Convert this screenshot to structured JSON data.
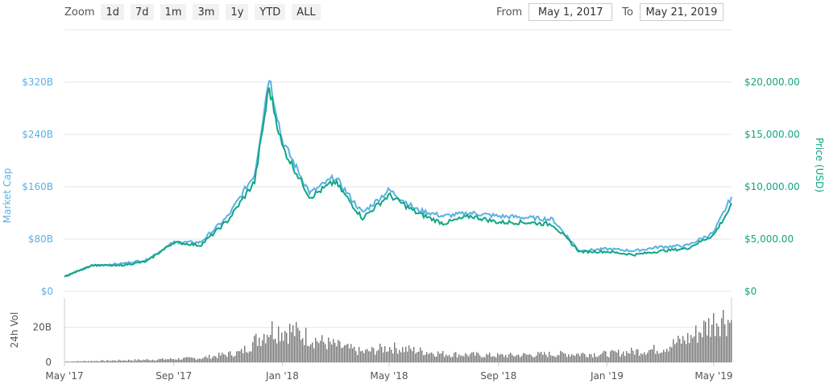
{
  "toolbar": {
    "zoom_label": "Zoom",
    "zoom_buttons": [
      "1d",
      "7d",
      "1m",
      "3m",
      "1y",
      "YTD",
      "ALL"
    ],
    "from_label": "From",
    "from_value": "May 1, 2017",
    "to_label": "To",
    "to_value": "May 21, 2019"
  },
  "colors": {
    "market_cap": "#5ab1e3",
    "price": "#11a680",
    "volume": "#777777",
    "grid": "#e6e6e6"
  },
  "chart_data": [
    {
      "type": "line",
      "x": [
        "2017-05-01",
        "2017-06-01",
        "2017-07-01",
        "2017-08-01",
        "2017-09-01",
        "2017-10-01",
        "2017-11-01",
        "2017-12-01",
        "2017-12-17",
        "2018-01-01",
        "2018-02-01",
        "2018-03-01",
        "2018-04-01",
        "2018-05-01",
        "2018-06-01",
        "2018-07-01",
        "2018-08-01",
        "2018-09-01",
        "2018-10-01",
        "2018-11-01",
        "2018-12-01",
        "2019-01-01",
        "2019-02-01",
        "2019-03-01",
        "2019-04-01",
        "2019-05-01",
        "2019-05-21"
      ],
      "series": [
        {
          "axis": "left",
          "values": [
            23,
            40,
            42,
            48,
            75,
            75,
            115,
            180,
            330,
            230,
            150,
            175,
            120,
            155,
            125,
            115,
            120,
            115,
            113,
            110,
            62,
            65,
            62,
            68,
            70,
            90,
            145
          ]
        },
        {
          "axis": "right",
          "values": [
            1400,
            2500,
            2450,
            2850,
            4700,
            4400,
            6800,
            10500,
            19500,
            13800,
            9000,
            10500,
            7000,
            9200,
            7500,
            6500,
            7200,
            6600,
            6600,
            6400,
            3800,
            3800,
            3500,
            3850,
            4100,
            5400,
            8200
          ]
        }
      ],
      "ylabel": "Market Cap",
      "ylabel_right": "Price (USD)",
      "left_axis": {
        "ticks": [
          "$0",
          "$80B",
          "$160B",
          "$240B",
          "$320B"
        ],
        "ylim": [
          0,
          320
        ]
      },
      "right_axis": {
        "ticks": [
          "$0",
          "$5,000.00",
          "$10,000.00",
          "$15,000.00",
          "$20,000.00"
        ],
        "ylim": [
          0,
          20000
        ]
      },
      "grid": true
    },
    {
      "type": "bar",
      "x_range": [
        "2017-05-01",
        "2019-05-21"
      ],
      "volume_keys": [
        [
          "2017-05-01",
          0.4
        ],
        [
          "2017-08-01",
          1.5
        ],
        [
          "2017-10-01",
          2.5
        ],
        [
          "2017-11-15",
          6
        ],
        [
          "2017-12-17",
          20
        ],
        [
          "2018-01-10",
          19
        ],
        [
          "2018-02-15",
          12
        ],
        [
          "2018-04-01",
          6
        ],
        [
          "2018-05-01",
          9
        ],
        [
          "2018-07-01",
          5
        ],
        [
          "2018-09-01",
          4
        ],
        [
          "2018-11-15",
          5
        ],
        [
          "2019-01-01",
          5
        ],
        [
          "2019-03-01",
          8
        ],
        [
          "2019-04-05",
          15
        ],
        [
          "2019-05-10",
          28
        ],
        [
          "2019-05-21",
          24
        ]
      ],
      "ylabel": "24h Vol",
      "ticks": [
        "0",
        "20B"
      ],
      "ylim": [
        0,
        30
      ],
      "x_ticks": [
        "May '17",
        "Sep '17",
        "Jan '18",
        "May '18",
        "Sep '18",
        "Jan '19",
        "May '19"
      ],
      "x_tick_dates": [
        "2017-05-01",
        "2017-09-01",
        "2018-01-01",
        "2018-05-01",
        "2018-09-01",
        "2019-01-01",
        "2019-05-01"
      ]
    }
  ]
}
